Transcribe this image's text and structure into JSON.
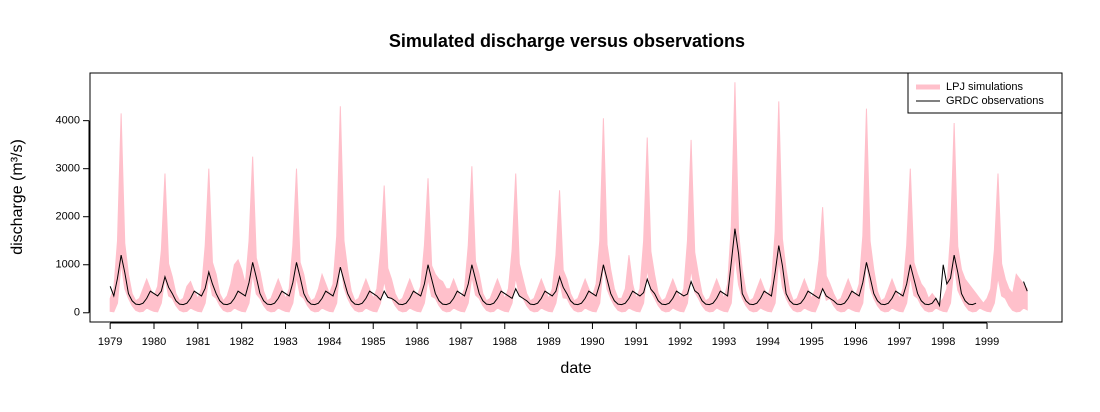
{
  "chart_data": {
    "type": "band-line",
    "title": "Simulated discharge versus observations",
    "x_label": "date",
    "y_label": "discharge (m³/s)",
    "xlim": [
      1978.54,
      2000.71
    ],
    "ylim": [
      -192,
      4992
    ],
    "xticks": [
      1979,
      1980,
      1981,
      1982,
      1983,
      1984,
      1985,
      1986,
      1987,
      1988,
      1989,
      1990,
      1991,
      1992,
      1993,
      1994,
      1995,
      1996,
      1997,
      1998,
      1999
    ],
    "yticks": [
      0,
      1000,
      2000,
      3000,
      4000
    ],
    "legend": "top-right",
    "grid": false,
    "x": [
      1979,
      1979.083,
      1979.167,
      1979.25,
      1979.333,
      1979.417,
      1979.5,
      1979.583,
      1979.667,
      1979.75,
      1979.833,
      1979.917,
      1980,
      1980.083,
      1980.167,
      1980.25,
      1980.333,
      1980.417,
      1980.5,
      1980.583,
      1980.667,
      1980.75,
      1980.833,
      1980.917,
      1981,
      1981.083,
      1981.167,
      1981.25,
      1981.333,
      1981.417,
      1981.5,
      1981.583,
      1981.667,
      1981.75,
      1981.833,
      1981.917,
      1982,
      1982.083,
      1982.167,
      1982.25,
      1982.333,
      1982.417,
      1982.5,
      1982.583,
      1982.667,
      1982.75,
      1982.833,
      1982.917,
      1983,
      1983.083,
      1983.167,
      1983.25,
      1983.333,
      1983.417,
      1983.5,
      1983.583,
      1983.667,
      1983.75,
      1983.833,
      1983.917,
      1984,
      1984.083,
      1984.167,
      1984.25,
      1984.333,
      1984.417,
      1984.5,
      1984.583,
      1984.667,
      1984.75,
      1984.833,
      1984.917,
      1985,
      1985.083,
      1985.167,
      1985.25,
      1985.333,
      1985.417,
      1985.5,
      1985.583,
      1985.667,
      1985.75,
      1985.833,
      1985.917,
      1986,
      1986.083,
      1986.167,
      1986.25,
      1986.333,
      1986.417,
      1986.5,
      1986.583,
      1986.667,
      1986.75,
      1986.833,
      1986.917,
      1987,
      1987.083,
      1987.167,
      1987.25,
      1987.333,
      1987.417,
      1987.5,
      1987.583,
      1987.667,
      1987.75,
      1987.833,
      1987.917,
      1988,
      1988.083,
      1988.167,
      1988.25,
      1988.333,
      1988.417,
      1988.5,
      1988.583,
      1988.667,
      1988.75,
      1988.833,
      1988.917,
      1989,
      1989.083,
      1989.167,
      1989.25,
      1989.333,
      1989.417,
      1989.5,
      1989.583,
      1989.667,
      1989.75,
      1989.833,
      1989.917,
      1990,
      1990.083,
      1990.167,
      1990.25,
      1990.333,
      1990.417,
      1990.5,
      1990.583,
      1990.667,
      1990.75,
      1990.833,
      1990.917,
      1991,
      1991.083,
      1991.167,
      1991.25,
      1991.333,
      1991.417,
      1991.5,
      1991.583,
      1991.667,
      1991.75,
      1991.833,
      1991.917,
      1992,
      1992.083,
      1992.167,
      1992.25,
      1992.333,
      1992.417,
      1992.5,
      1992.583,
      1992.667,
      1992.75,
      1992.833,
      1992.917,
      1993,
      1993.083,
      1993.167,
      1993.25,
      1993.333,
      1993.417,
      1993.5,
      1993.583,
      1993.667,
      1993.75,
      1993.833,
      1993.917,
      1994,
      1994.083,
      1994.167,
      1994.25,
      1994.333,
      1994.417,
      1994.5,
      1994.583,
      1994.667,
      1994.75,
      1994.833,
      1994.917,
      1995,
      1995.083,
      1995.167,
      1995.25,
      1995.333,
      1995.417,
      1995.5,
      1995.583,
      1995.667,
      1995.75,
      1995.833,
      1995.917,
      1996,
      1996.083,
      1996.167,
      1996.25,
      1996.333,
      1996.417,
      1996.5,
      1996.583,
      1996.667,
      1996.75,
      1996.833,
      1996.917,
      1997,
      1997.083,
      1997.167,
      1997.25,
      1997.333,
      1997.417,
      1997.5,
      1997.583,
      1997.667,
      1997.75,
      1997.833,
      1997.917,
      1998,
      1998.083,
      1998.167,
      1998.25,
      1998.333,
      1998.417,
      1998.5,
      1998.583,
      1998.667,
      1998.75,
      1998.833,
      1998.917,
      1999,
      1999.083,
      1999.167,
      1999.25,
      1999.333,
      1999.417,
      1999.5,
      1999.583,
      1999.667,
      1999.75,
      1999.833,
      1999.917
    ],
    "series": [
      {
        "name": "LPJ simulations",
        "color": "#ffc0cb",
        "upper": [
          300,
          500,
          1500,
          4150,
          1450,
          800,
          400,
          250,
          300,
          500,
          700,
          500,
          350,
          550,
          1300,
          2900,
          1020,
          750,
          400,
          250,
          300,
          550,
          650,
          450,
          300,
          500,
          1400,
          3000,
          1050,
          800,
          400,
          250,
          350,
          600,
          1000,
          1100,
          900,
          600,
          1500,
          3250,
          1140,
          850,
          450,
          250,
          300,
          500,
          700,
          500,
          300,
          500,
          1400,
          3000,
          1050,
          800,
          400,
          250,
          300,
          500,
          800,
          600,
          400,
          600,
          1600,
          4300,
          1500,
          900,
          450,
          250,
          300,
          500,
          700,
          500,
          300,
          500,
          1300,
          2650,
          930,
          700,
          400,
          250,
          300,
          500,
          700,
          500,
          350,
          550,
          1400,
          2800,
          980,
          800,
          700,
          650,
          500,
          500,
          700,
          500,
          300,
          500,
          1400,
          3050,
          1070,
          800,
          400,
          250,
          300,
          500,
          700,
          500,
          300,
          500,
          1300,
          2900,
          1020,
          700,
          400,
          250,
          300,
          500,
          700,
          500,
          300,
          500,
          1200,
          2550,
          890,
          700,
          400,
          250,
          300,
          500,
          700,
          500,
          350,
          600,
          1500,
          4050,
          1420,
          900,
          500,
          300,
          300,
          500,
          1200,
          600,
          300,
          500,
          1500,
          3650,
          1280,
          800,
          400,
          250,
          300,
          500,
          700,
          500,
          300,
          500,
          1500,
          3600,
          1260,
          800,
          400,
          250,
          300,
          500,
          700,
          500,
          300,
          600,
          1800,
          4800,
          1680,
          900,
          450,
          250,
          300,
          500,
          700,
          500,
          350,
          600,
          1700,
          4400,
          1540,
          900,
          450,
          250,
          300,
          500,
          700,
          500,
          300,
          500,
          1100,
          2200,
          770,
          600,
          400,
          250,
          300,
          500,
          700,
          500,
          350,
          600,
          1600,
          4250,
          1490,
          900,
          450,
          250,
          300,
          500,
          700,
          500,
          300,
          500,
          1400,
          3000,
          1050,
          800,
          600,
          500,
          300,
          400,
          300,
          200,
          300,
          500,
          1600,
          3950,
          1380,
          900,
          700,
          600,
          500,
          400,
          300,
          200,
          300,
          500,
          1300,
          2900,
          1020,
          700,
          500,
          400,
          800,
          700,
          600,
          500
        ],
        "lower": [
          30,
          20,
          200,
          1040,
          500,
          300,
          150,
          50,
          20,
          30,
          100,
          60,
          30,
          20,
          200,
          730,
          350,
          300,
          150,
          50,
          20,
          30,
          100,
          60,
          30,
          20,
          200,
          750,
          360,
          300,
          150,
          50,
          20,
          30,
          100,
          60,
          30,
          20,
          200,
          810,
          390,
          300,
          150,
          50,
          20,
          30,
          100,
          60,
          30,
          20,
          200,
          750,
          360,
          300,
          150,
          50,
          20,
          30,
          100,
          60,
          30,
          20,
          200,
          1080,
          520,
          300,
          150,
          50,
          20,
          30,
          100,
          60,
          30,
          20,
          200,
          660,
          320,
          300,
          150,
          50,
          20,
          30,
          100,
          60,
          30,
          20,
          200,
          700,
          340,
          300,
          150,
          50,
          20,
          30,
          100,
          60,
          30,
          20,
          200,
          760,
          370,
          300,
          150,
          50,
          20,
          30,
          100,
          60,
          30,
          20,
          200,
          730,
          350,
          300,
          150,
          50,
          20,
          30,
          100,
          60,
          30,
          20,
          200,
          640,
          310,
          300,
          150,
          50,
          20,
          30,
          100,
          60,
          30,
          20,
          200,
          1010,
          490,
          300,
          150,
          50,
          20,
          30,
          100,
          60,
          30,
          20,
          200,
          910,
          440,
          300,
          150,
          50,
          20,
          30,
          100,
          60,
          30,
          20,
          200,
          900,
          430,
          300,
          150,
          50,
          20,
          30,
          100,
          60,
          30,
          20,
          200,
          1200,
          580,
          300,
          150,
          50,
          20,
          30,
          100,
          60,
          30,
          20,
          200,
          1100,
          530,
          300,
          150,
          50,
          20,
          30,
          100,
          60,
          30,
          20,
          200,
          550,
          260,
          300,
          150,
          50,
          20,
          30,
          100,
          60,
          30,
          20,
          200,
          1060,
          510,
          300,
          150,
          50,
          20,
          30,
          100,
          60,
          30,
          20,
          200,
          750,
          360,
          300,
          150,
          50,
          20,
          30,
          100,
          60,
          30,
          20,
          200,
          990,
          470,
          300,
          150,
          50,
          20,
          30,
          100,
          60,
          30,
          20,
          200,
          730,
          350,
          300,
          150,
          50,
          20,
          30,
          100,
          60
        ]
      },
      {
        "name": "GRDC observations",
        "color": "#000000",
        "values": [
          550,
          350,
          720,
          1200,
          840,
          400,
          250,
          180,
          170,
          200,
          300,
          450,
          400,
          350,
          450,
          750,
          530,
          400,
          250,
          180,
          170,
          200,
          300,
          450,
          400,
          350,
          510,
          850,
          600,
          400,
          250,
          180,
          170,
          200,
          300,
          450,
          400,
          350,
          630,
          1050,
          740,
          400,
          250,
          180,
          170,
          200,
          300,
          450,
          400,
          350,
          630,
          1050,
          740,
          400,
          250,
          180,
          170,
          200,
          300,
          450,
          400,
          350,
          570,
          950,
          670,
          400,
          250,
          180,
          170,
          200,
          300,
          450,
          400,
          350,
          270,
          450,
          320,
          300,
          250,
          180,
          170,
          200,
          300,
          450,
          400,
          350,
          600,
          1000,
          700,
          400,
          250,
          180,
          170,
          200,
          300,
          450,
          400,
          350,
          600,
          1000,
          700,
          400,
          250,
          180,
          170,
          200,
          300,
          450,
          400,
          350,
          300,
          500,
          350,
          300,
          250,
          180,
          170,
          200,
          300,
          450,
          400,
          350,
          450,
          750,
          530,
          400,
          250,
          180,
          170,
          200,
          300,
          450,
          400,
          350,
          600,
          1000,
          700,
          400,
          250,
          180,
          170,
          200,
          300,
          450,
          400,
          350,
          420,
          700,
          490,
          400,
          250,
          180,
          170,
          200,
          300,
          450,
          400,
          350,
          390,
          650,
          460,
          400,
          250,
          180,
          170,
          200,
          300,
          450,
          400,
          350,
          1050,
          1750,
          1230,
          400,
          250,
          180,
          170,
          200,
          300,
          450,
          400,
          350,
          840,
          1400,
          980,
          400,
          250,
          180,
          170,
          200,
          300,
          450,
          400,
          350,
          300,
          500,
          350,
          300,
          250,
          180,
          170,
          200,
          300,
          450,
          400,
          350,
          630,
          1050,
          740,
          400,
          250,
          180,
          170,
          200,
          300,
          450,
          400,
          350,
          600,
          1000,
          700,
          400,
          250,
          180,
          170,
          200,
          300,
          150,
          1000,
          600,
          720,
          1200,
          840,
          400,
          250,
          180,
          170,
          200,
          null,
          null,
          null,
          null,
          null,
          null,
          null,
          null,
          null,
          null,
          null,
          null,
          650,
          450
        ]
      }
    ]
  }
}
